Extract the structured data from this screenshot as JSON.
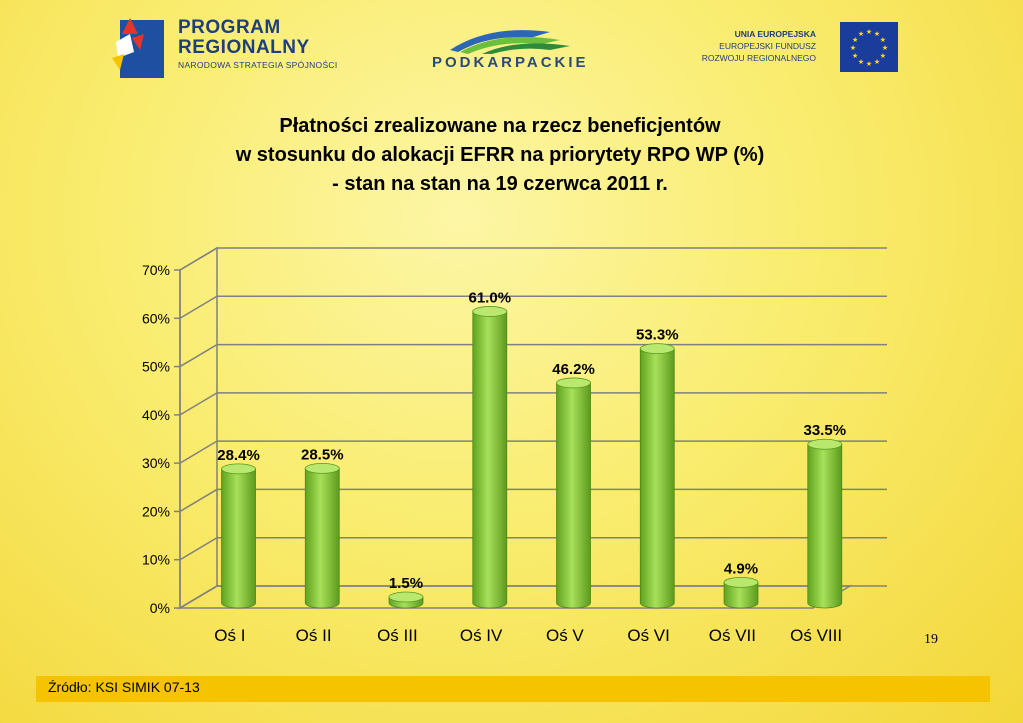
{
  "logos": {
    "program_regionalny": {
      "line1": "PROGRAM",
      "line2": "REGIONALNY",
      "line3": "NARODOWA STRATEGIA SPÓJNOŚCI"
    },
    "podkarpackie": {
      "text": "PODKARPACKIE"
    },
    "ue": {
      "line1": "UNIA EUROPEJSKA",
      "line2": "EUROPEJSKI FUNDUSZ",
      "line3": "ROZWOJU REGIONALNEGO"
    }
  },
  "title": {
    "line1": "Płatności zrealizowane na rzecz beneficjentów",
    "line2": "w stosunku do alokacji EFRR na priorytety RPO WP (%)",
    "line3": "- stan na stan na 19 czerwca 2011 r."
  },
  "chart_data": {
    "type": "bar",
    "categories": [
      "Oś I",
      "Oś II",
      "Oś III",
      "Oś IV",
      "Oś V",
      "Oś VI",
      "Oś VII",
      "Oś VIII"
    ],
    "values": [
      28.4,
      28.5,
      1.5,
      61.0,
      46.2,
      53.3,
      4.9,
      33.5
    ],
    "data_labels": [
      "28.4%",
      "28.5%",
      "1.5%",
      "61.0%",
      "46.2%",
      "53.3%",
      "4.9%",
      "33.5%"
    ],
    "yticks": [
      "0%",
      "10%",
      "20%",
      "30%",
      "40%",
      "50%",
      "60%",
      "70%"
    ],
    "ylim": [
      0,
      70
    ],
    "grid": true,
    "bar_color": "#8ccf3c"
  },
  "page_number": "19",
  "source": "Źródło: KSI SIMIK 07-13"
}
